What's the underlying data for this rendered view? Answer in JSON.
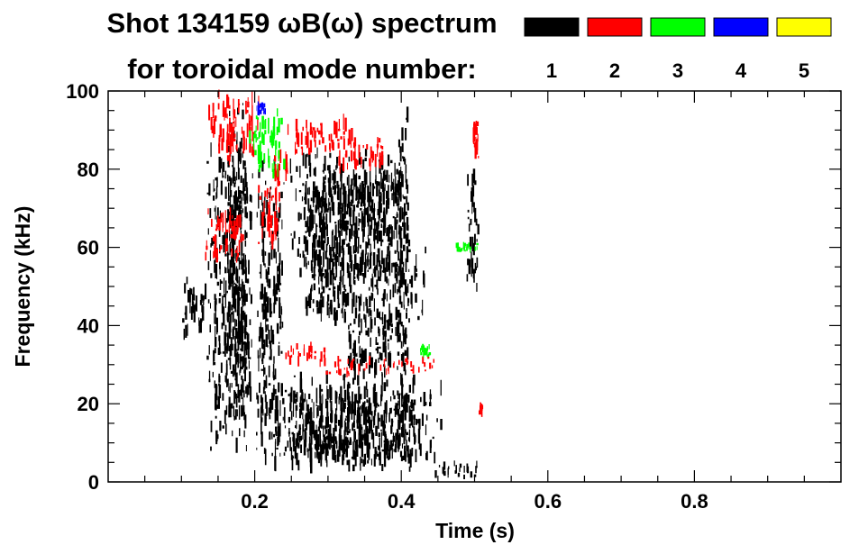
{
  "chart_data": {
    "type": "heatmap",
    "title": "Shot 134159 ωB(ω) spectrum",
    "subtitle": "for toroidal mode number:",
    "xlabel": "Time (s)",
    "ylabel": "Frequency (kHz)",
    "xlim": [
      0.0,
      1.0
    ],
    "ylim": [
      0,
      100
    ],
    "x_ticks": [
      {
        "value": 0.2,
        "label": "0.2"
      },
      {
        "value": 0.4,
        "label": "0.4"
      },
      {
        "value": 0.6,
        "label": "0.6"
      },
      {
        "value": 0.8,
        "label": "0.8"
      }
    ],
    "y_ticks": [
      {
        "value": 0,
        "label": "0"
      },
      {
        "value": 20,
        "label": "20"
      },
      {
        "value": 40,
        "label": "40"
      },
      {
        "value": 60,
        "label": "60"
      },
      {
        "value": 80,
        "label": "80"
      },
      {
        "value": 100,
        "label": "100"
      }
    ],
    "legend_placement": "top-right",
    "modes": [
      {
        "label": "1",
        "color": "#000000"
      },
      {
        "label": "2",
        "color": "#ff0000"
      },
      {
        "label": "3",
        "color": "#00ff00"
      },
      {
        "label": "4",
        "color": "#0000ff"
      },
      {
        "label": "5",
        "color": "#ffff00"
      }
    ],
    "regions": [
      {
        "mode": "1",
        "t": [
          0.095,
          0.135
        ],
        "f": [
          37,
          52
        ]
      },
      {
        "mode": "1",
        "t": [
          0.13,
          0.2
        ],
        "f": [
          5,
          88
        ]
      },
      {
        "mode": "1",
        "t": [
          0.16,
          0.19
        ],
        "f": [
          20,
          100
        ]
      },
      {
        "mode": "1",
        "t": [
          0.2,
          0.24
        ],
        "f": [
          2,
          85
        ]
      },
      {
        "mode": "1",
        "t": [
          0.24,
          0.41
        ],
        "f": [
          50,
          85
        ]
      },
      {
        "mode": "1",
        "t": [
          0.26,
          0.41
        ],
        "f": [
          60,
          78
        ]
      },
      {
        "mode": "1",
        "t": [
          0.25,
          0.44
        ],
        "f": [
          40,
          60
        ]
      },
      {
        "mode": "1",
        "t": [
          0.21,
          0.46
        ],
        "f": [
          2,
          28
        ]
      },
      {
        "mode": "1",
        "t": [
          0.24,
          0.42
        ],
        "f": [
          5,
          23
        ]
      },
      {
        "mode": "1",
        "t": [
          0.32,
          0.4
        ],
        "f": [
          25,
          44
        ]
      },
      {
        "mode": "1",
        "t": [
          0.39,
          0.41
        ],
        "f": [
          2,
          98
        ]
      },
      {
        "mode": "1",
        "t": [
          0.44,
          0.51
        ],
        "f": [
          1,
          5
        ]
      },
      {
        "mode": "1",
        "t": [
          0.488,
          0.505
        ],
        "f": [
          47,
          80
        ]
      },
      {
        "mode": "2",
        "t": [
          0.135,
          0.21
        ],
        "f": [
          82,
          100
        ]
      },
      {
        "mode": "2",
        "t": [
          0.2,
          0.235
        ],
        "f": [
          60,
          78
        ]
      },
      {
        "mode": "2",
        "t": [
          0.13,
          0.19
        ],
        "f": [
          55,
          70
        ]
      },
      {
        "mode": "2",
        "t": [
          0.24,
          0.34
        ],
        "f": [
          84,
          93
        ]
      },
      {
        "mode": "2",
        "t": [
          0.3,
          0.38
        ],
        "f": [
          80,
          88
        ]
      },
      {
        "mode": "2",
        "t": [
          0.22,
          0.25
        ],
        "f": [
          75,
          85
        ]
      },
      {
        "mode": "2",
        "t": [
          0.24,
          0.3
        ],
        "f": [
          30,
          35
        ]
      },
      {
        "mode": "2",
        "t": [
          0.28,
          0.36
        ],
        "f": [
          27,
          32
        ]
      },
      {
        "mode": "2",
        "t": [
          0.36,
          0.45
        ],
        "f": [
          28,
          32
        ]
      },
      {
        "mode": "2",
        "t": [
          0.495,
          0.505
        ],
        "f": [
          82,
          93
        ]
      },
      {
        "mode": "2",
        "t": [
          0.505,
          0.51
        ],
        "f": [
          17,
          20
        ]
      },
      {
        "mode": "3",
        "t": [
          0.19,
          0.24
        ],
        "f": [
          78,
          95
        ]
      },
      {
        "mode": "3",
        "t": [
          0.425,
          0.44
        ],
        "f": [
          32,
          35
        ]
      },
      {
        "mode": "3",
        "t": [
          0.47,
          0.505
        ],
        "f": [
          59,
          61
        ]
      },
      {
        "mode": "4",
        "t": [
          0.2,
          0.215
        ],
        "f": [
          94,
          97
        ]
      }
    ]
  }
}
